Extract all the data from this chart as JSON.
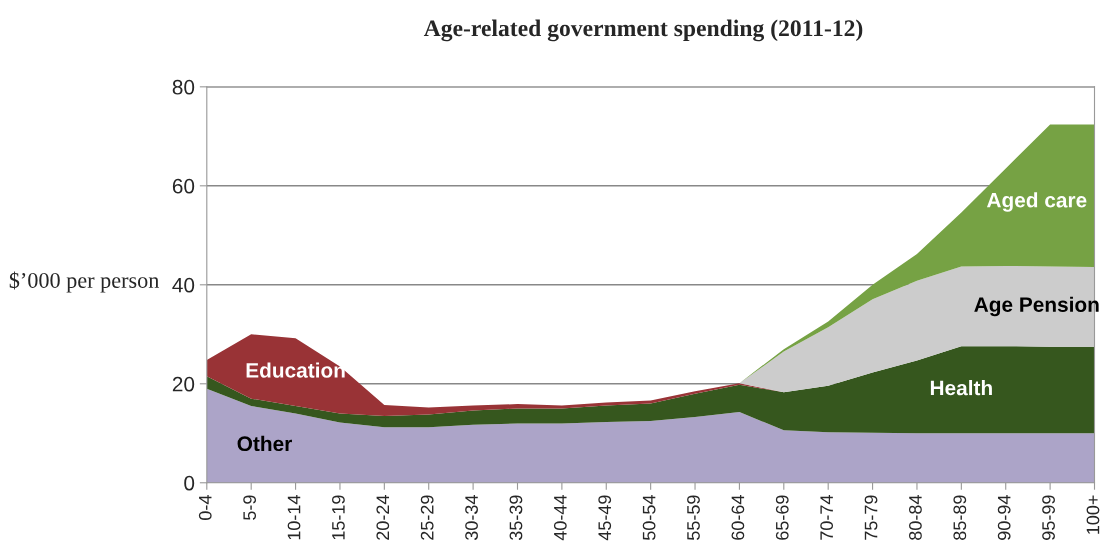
{
  "chart_data": {
    "type": "area",
    "stacked": true,
    "title": "Age-related government spending (2011-12)",
    "ylabel": "$’000 per person",
    "categories": [
      "0-4",
      "5-9",
      "10-14",
      "15-19",
      "20-24",
      "25-29",
      "30-34",
      "35-39",
      "40-44",
      "45-49",
      "50-54",
      "55-59",
      "60-64",
      "65-69",
      "70-74",
      "75-79",
      "80-84",
      "85-89",
      "90-94",
      "95-99",
      "100+"
    ],
    "series": [
      {
        "name": "Other",
        "color": "#aca4c8",
        "values": [
          19,
          15.5,
          14,
          12.2,
          11.2,
          11.2,
          11.7,
          12,
          12,
          12.3,
          12.5,
          13.3,
          14.3,
          10.6,
          10.2,
          10.1,
          10,
          10,
          10,
          10,
          10
        ]
      },
      {
        "name": "Health",
        "color": "#36571e",
        "values": [
          2.5,
          1.5,
          1.5,
          1.8,
          2.3,
          2.6,
          2.9,
          3,
          3,
          3.3,
          3.5,
          4.7,
          5.5,
          7.7,
          9.4,
          12.2,
          14.7,
          17.6,
          17.6,
          17.5,
          17.5
        ]
      },
      {
        "name": "Education",
        "color": "#993336",
        "values": [
          3.3,
          13,
          13.7,
          9.5,
          2.2,
          1.4,
          1,
          0.9,
          0.6,
          0.6,
          0.6,
          0.5,
          0.3,
          0,
          0,
          0,
          0,
          0,
          0,
          0,
          0
        ]
      },
      {
        "name": "Age Pension",
        "color": "#cccccc",
        "values": [
          0,
          0,
          0,
          0,
          0,
          0,
          0,
          0,
          0,
          0,
          0,
          0,
          0,
          8.2,
          11.8,
          14.8,
          16.1,
          16.1,
          16.2,
          16.2,
          16.1
        ]
      },
      {
        "name": "Aged care",
        "color": "#76a244",
        "values": [
          0,
          0,
          0,
          0,
          0,
          0,
          0,
          0,
          0,
          0,
          0,
          0,
          0,
          0.5,
          1.2,
          2.9,
          5.4,
          10.9,
          19.7,
          28.7,
          28.8
        ]
      }
    ],
    "ylim": [
      0,
      80
    ],
    "yticks": [
      0,
      20,
      40,
      60,
      80
    ],
    "grid": "y"
  }
}
